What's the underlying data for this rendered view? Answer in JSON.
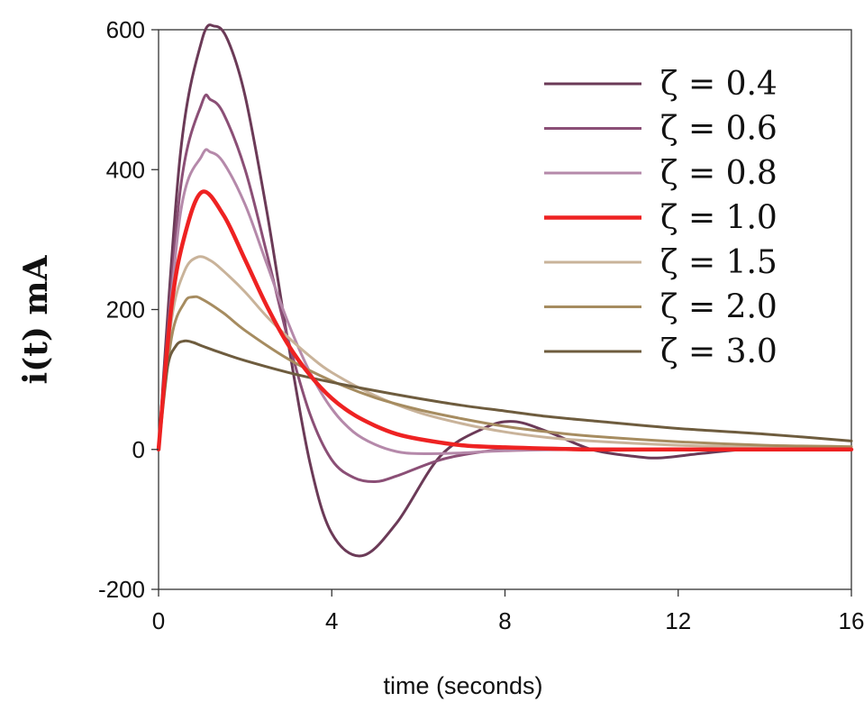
{
  "chart_data": {
    "type": "line",
    "title": "",
    "xlabel": "time (seconds)",
    "ylabel": "i(t) mA",
    "xlim": [
      0,
      16
    ],
    "ylim": [
      -200,
      600
    ],
    "xticks": [
      0,
      4,
      8,
      12,
      16
    ],
    "yticks": [
      -200,
      0,
      200,
      400,
      600
    ],
    "grid": false,
    "legend_position": "top-right",
    "series": [
      {
        "name": "ζ = 0.4",
        "color": "#6b3a57",
        "stroke_width": 3,
        "x": [
          0,
          0.5,
          1.0,
          1.3,
          1.6,
          2.0,
          2.5,
          3.0,
          3.5,
          4.0,
          4.7,
          5.5,
          6.5,
          7.5,
          8.2,
          9.0,
          10.0,
          11.0,
          11.6,
          12.5,
          13.5,
          14.5,
          16.0
        ],
        "y": [
          0,
          420,
          585,
          605,
          585,
          505,
          340,
          150,
          -20,
          -120,
          -152,
          -105,
          -10,
          30,
          40,
          25,
          0,
          -10,
          -12,
          -6,
          0,
          3,
          1
        ]
      },
      {
        "name": "ζ = 0.6",
        "color": "#8b4f76",
        "stroke_width": 3,
        "x": [
          0,
          0.5,
          1.0,
          1.2,
          1.5,
          2.0,
          2.5,
          3.0,
          3.5,
          4.0,
          4.5,
          5.0,
          5.5,
          6.5,
          7.5,
          8.5,
          10.0,
          12.0,
          16.0
        ],
        "y": [
          0,
          370,
          495,
          500,
          480,
          400,
          280,
          155,
          50,
          -15,
          -40,
          -46,
          -38,
          -15,
          -3,
          2,
          1,
          0,
          0
        ]
      },
      {
        "name": "ζ = 0.8",
        "color": "#b589aa",
        "stroke_width": 3,
        "x": [
          0,
          0.5,
          1.0,
          1.2,
          1.5,
          2.0,
          2.5,
          3.0,
          3.5,
          4.0,
          4.5,
          5.0,
          5.5,
          6.0,
          7.0,
          8.0,
          10.0,
          16.0
        ],
        "y": [
          0,
          335,
          420,
          425,
          410,
          350,
          265,
          180,
          110,
          58,
          25,
          7,
          -3,
          -6,
          -5,
          -2,
          0,
          0
        ]
      },
      {
        "name": "ζ = 1.0",
        "color": "#ee2222",
        "stroke_width": 4.5,
        "x": [
          0,
          0.3,
          0.6,
          1.0,
          1.5,
          2.0,
          2.5,
          3.0,
          3.5,
          4.0,
          4.5,
          5.0,
          5.5,
          6.0,
          7.0,
          8.0,
          10.0,
          12.0,
          16.0
        ],
        "y": [
          0,
          205,
          305,
          368,
          335,
          271,
          205,
          149,
          106,
          73,
          50,
          34,
          22,
          15,
          6,
          3,
          0,
          0,
          0
        ]
      },
      {
        "name": "ζ = 1.5",
        "color": "#c9b39a",
        "stroke_width": 3,
        "x": [
          0,
          0.3,
          0.6,
          0.9,
          1.2,
          1.5,
          2.0,
          2.5,
          3.0,
          3.5,
          4.0,
          5.0,
          6.0,
          7.0,
          8.0,
          9.0,
          10.0,
          12.0,
          14.0,
          16.0
        ],
        "y": [
          0,
          185,
          255,
          275,
          270,
          255,
          225,
          190,
          160,
          133,
          110,
          77,
          53,
          37,
          25,
          17,
          12,
          6,
          3,
          1
        ]
      },
      {
        "name": "ζ = 2.0",
        "color": "#a68c60",
        "stroke_width": 3,
        "x": [
          0,
          0.3,
          0.6,
          0.8,
          1.0,
          1.5,
          2.0,
          3.0,
          4.0,
          5.0,
          6.0,
          7.0,
          8.0,
          9.0,
          10.0,
          12.0,
          14.0,
          16.0
        ],
        "y": [
          0,
          160,
          210,
          218,
          215,
          195,
          170,
          129,
          98,
          74,
          57,
          44,
          33,
          25,
          19,
          11,
          6,
          4
        ]
      },
      {
        "name": "ζ = 3.0",
        "color": "#6e5c3e",
        "stroke_width": 3,
        "x": [
          0,
          0.2,
          0.4,
          0.6,
          0.8,
          1.0,
          1.5,
          2.0,
          3.0,
          4.0,
          5.0,
          6.0,
          7.0,
          8.0,
          9.0,
          10.0,
          12.0,
          14.0,
          16.0
        ],
        "y": [
          0,
          115,
          148,
          155,
          153,
          148,
          137,
          127,
          110,
          96,
          84,
          73,
          63,
          55,
          47,
          41,
          30,
          22,
          12
        ]
      }
    ]
  }
}
